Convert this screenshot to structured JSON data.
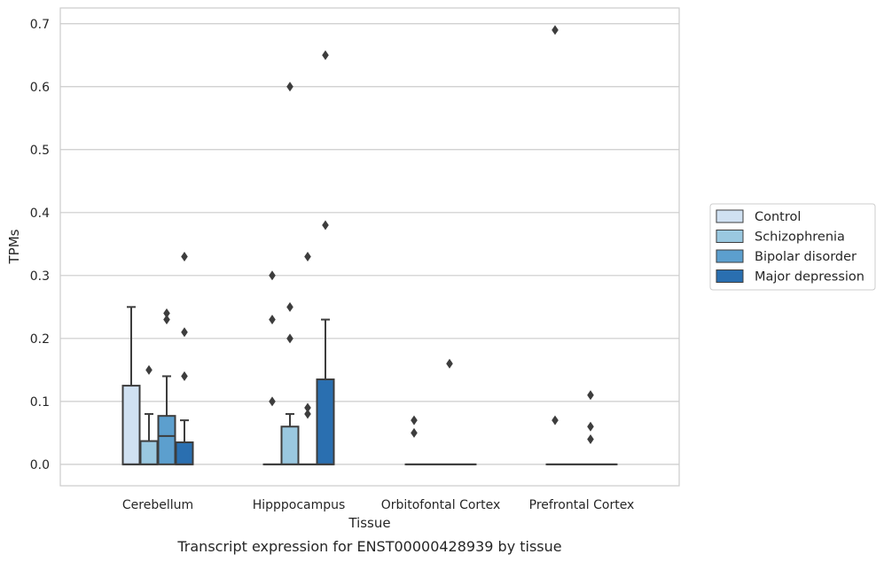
{
  "chart_data": {
    "type": "bar",
    "categories": [
      "Cerebellum",
      "Hipppocampus",
      "Orbitofontal Cortex",
      "Prefrontal Cortex"
    ],
    "xlabel": "Tissue",
    "ylabel": "TPMs",
    "caption": "Transcript expression for ENST00000428939 by tissue",
    "ylim": [
      -0.034,
      0.725
    ],
    "yticks": [
      0.0,
      0.1,
      0.2,
      0.3,
      0.4,
      0.5,
      0.6,
      0.7
    ],
    "ytick_labels": [
      "0.0",
      "0.1",
      "0.2",
      "0.3",
      "0.4",
      "0.5",
      "0.6",
      "0.7"
    ],
    "grid": true,
    "legend_position": "right",
    "series": [
      {
        "name": "Control",
        "color": "#d0e1f2",
        "boxes": [
          {
            "q1": 0.0,
            "q3": 0.125,
            "whisker_low": 0.0,
            "whisker_high": 0.25,
            "median": 0.0,
            "outliers": []
          },
          {
            "q1": 0.0,
            "q3": 0.0,
            "whisker_low": 0.0,
            "whisker_high": 0.0,
            "median": 0.0,
            "outliers": [
              0.1,
              0.23,
              0.3
            ]
          },
          {
            "q1": 0.0,
            "q3": 0.0,
            "whisker_low": 0.0,
            "whisker_high": 0.0,
            "median": 0.0,
            "outliers": [
              0.05,
              0.07
            ]
          },
          {
            "q1": 0.0,
            "q3": 0.0,
            "whisker_low": 0.0,
            "whisker_high": 0.0,
            "median": 0.0,
            "outliers": [
              0.07,
              0.69
            ]
          }
        ]
      },
      {
        "name": "Schizophrenia",
        "color": "#9ac8e0",
        "boxes": [
          {
            "q1": 0.0,
            "q3": 0.037,
            "whisker_low": 0.0,
            "whisker_high": 0.08,
            "median": 0.0,
            "outliers": [
              0.15
            ]
          },
          {
            "q1": 0.0,
            "q3": 0.06,
            "whisker_low": 0.0,
            "whisker_high": 0.08,
            "median": 0.0,
            "outliers": [
              0.2,
              0.25,
              0.6
            ]
          },
          {
            "q1": 0.0,
            "q3": 0.0,
            "whisker_low": 0.0,
            "whisker_high": 0.0,
            "median": 0.0,
            "outliers": []
          },
          {
            "q1": 0.0,
            "q3": 0.0,
            "whisker_low": 0.0,
            "whisker_high": 0.0,
            "median": 0.0,
            "outliers": []
          }
        ]
      },
      {
        "name": "Bipolar disorder",
        "color": "#5c9fce",
        "boxes": [
          {
            "q1": 0.0,
            "q3": 0.077,
            "whisker_low": 0.0,
            "whisker_high": 0.14,
            "median": 0.045,
            "outliers": [
              0.23,
              0.24
            ]
          },
          {
            "q1": 0.0,
            "q3": 0.0,
            "whisker_low": 0.0,
            "whisker_high": 0.0,
            "median": 0.0,
            "outliers": [
              0.08,
              0.09,
              0.33
            ]
          },
          {
            "q1": 0.0,
            "q3": 0.0,
            "whisker_low": 0.0,
            "whisker_high": 0.0,
            "median": 0.0,
            "outliers": [
              0.16
            ]
          },
          {
            "q1": 0.0,
            "q3": 0.0,
            "whisker_low": 0.0,
            "whisker_high": 0.0,
            "median": 0.0,
            "outliers": [
              0.04,
              0.06,
              0.11
            ]
          }
        ]
      },
      {
        "name": "Major depression",
        "color": "#2a6fb0",
        "boxes": [
          {
            "q1": 0.0,
            "q3": 0.035,
            "whisker_low": 0.0,
            "whisker_high": 0.07,
            "median": 0.0,
            "outliers": [
              0.14,
              0.21,
              0.33
            ]
          },
          {
            "q1": 0.0,
            "q3": 0.135,
            "whisker_low": 0.0,
            "whisker_high": 0.23,
            "median": 0.0,
            "outliers": [
              0.38,
              0.65
            ]
          },
          {
            "q1": 0.0,
            "q3": 0.0,
            "whisker_low": 0.0,
            "whisker_high": 0.0,
            "median": 0.0,
            "outliers": []
          },
          {
            "q1": 0.0,
            "q3": 0.0,
            "whisker_low": 0.0,
            "whisker_high": 0.0,
            "median": 0.0,
            "outliers": []
          }
        ]
      }
    ],
    "colors": {
      "grid": "#cccccc",
      "frame": "#cccccc",
      "stroke": "#3d3d3d"
    }
  }
}
